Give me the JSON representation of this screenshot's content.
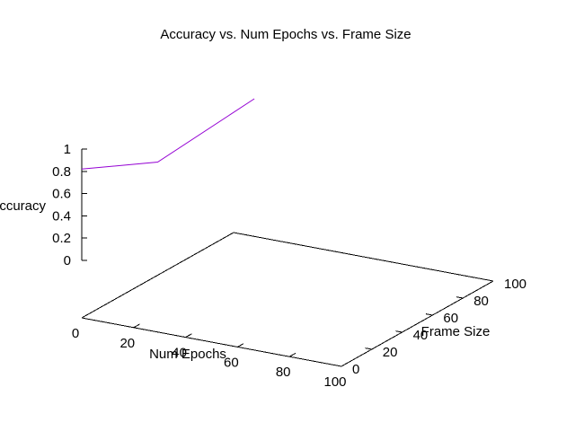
{
  "chart_data": {
    "type": "line",
    "title": "Accuracy vs. Num Epochs vs. Frame Size",
    "xlabel": "Num Epochs",
    "ylabel": "Frame Size",
    "zlabel": "Accuracy",
    "xlim": [
      0,
      100
    ],
    "ylim": [
      0,
      100
    ],
    "zlim": [
      0,
      1
    ],
    "xticks": [
      "0",
      "20",
      "40",
      "60",
      "80",
      "100"
    ],
    "yticks": [
      "0",
      "20",
      "40",
      "60",
      "80",
      "100"
    ],
    "zticks": [
      "0",
      "0.2",
      "0.4",
      "0.6",
      "0.8",
      "1"
    ],
    "grid": false,
    "series": [
      {
        "color": "#9400d3",
        "points": [
          {
            "x": 8,
            "y": 100,
            "z": 0.72
          },
          {
            "x": 0,
            "y": 50,
            "z": 0.5
          },
          {
            "x": 0,
            "y": 0,
            "z": 0.82
          }
        ]
      }
    ]
  }
}
